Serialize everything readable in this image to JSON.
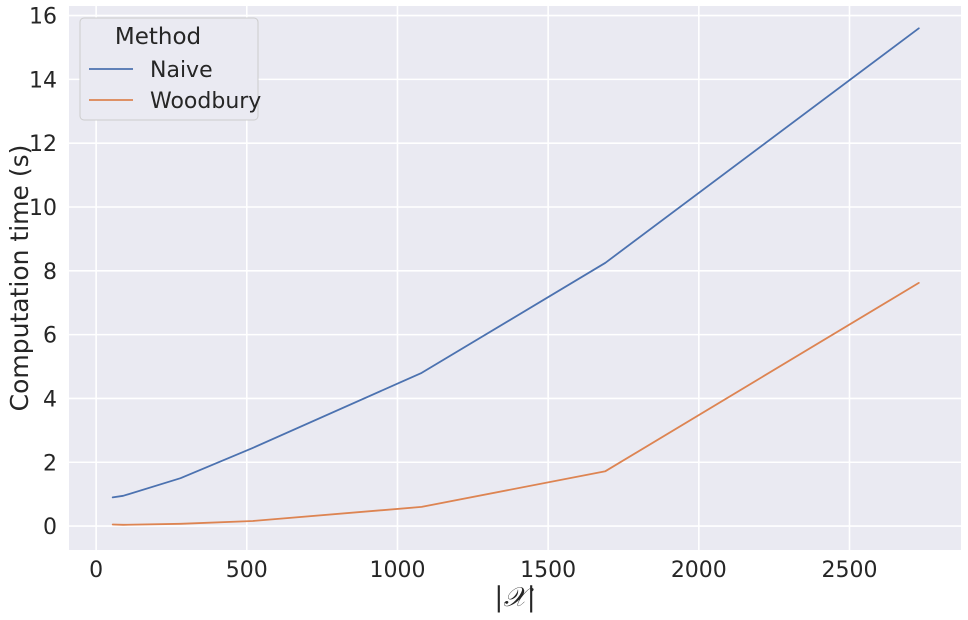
{
  "chart_data": {
    "type": "line",
    "title": "",
    "xlabel": "|𝒳|",
    "ylabel": "Computation time (s)",
    "xlim": [
      -90,
      2870
    ],
    "ylim": [
      -0.75,
      16.3
    ],
    "xticks": [
      0,
      500,
      1000,
      1500,
      2000,
      2500
    ],
    "yticks": [
      0,
      2,
      4,
      6,
      8,
      10,
      12,
      14,
      16
    ],
    "grid": true,
    "legend": {
      "title": "Method",
      "placement": "top-left"
    },
    "series": [
      {
        "name": "Naive",
        "color": "#4c72b0",
        "x": [
          55,
          90,
          280,
          520,
          1080,
          1690,
          2730
        ],
        "y": [
          0.9,
          0.95,
          1.5,
          2.45,
          4.8,
          8.25,
          15.6
        ]
      },
      {
        "name": "Woodbury",
        "color": "#dd8452",
        "x": [
          55,
          90,
          280,
          520,
          1080,
          1690,
          2730
        ],
        "y": [
          0.05,
          0.04,
          0.07,
          0.16,
          0.6,
          1.72,
          7.62
        ]
      }
    ]
  }
}
